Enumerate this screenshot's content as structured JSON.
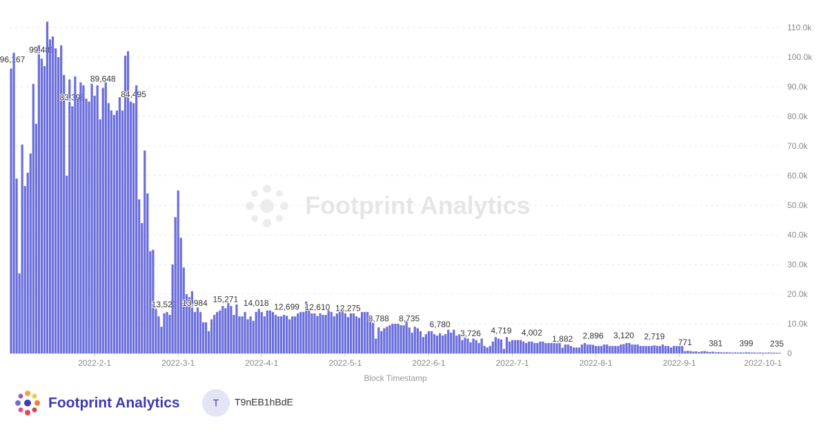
{
  "chart_data": {
    "type": "bar",
    "x_label": "Block Timestamp",
    "color": "#6b6edb",
    "grid": true,
    "ylim": [
      0,
      115000
    ],
    "yticks": [
      0,
      {
        "value": 10000,
        "label": "10.0k"
      },
      {
        "value": 20000,
        "label": "20.0k"
      },
      {
        "value": 30000,
        "label": "30.0k"
      },
      {
        "value": 40000,
        "label": "40.0k"
      },
      {
        "value": 50000,
        "label": "50.0k"
      },
      {
        "value": 60000,
        "label": "60.0k"
      },
      {
        "value": 70000,
        "label": "70.0k"
      },
      {
        "value": 80000,
        "label": "80.0k"
      },
      {
        "value": 90000,
        "label": "90.0k"
      },
      {
        "value": 100000,
        "label": "100.0k"
      },
      {
        "value": 110000,
        "label": "110.0k"
      }
    ],
    "categories": [
      null,
      null,
      null,
      null,
      null,
      null,
      null,
      null,
      null,
      null,
      null,
      null,
      null,
      null,
      null,
      null,
      null,
      null,
      null,
      null,
      null,
      null,
      null,
      null,
      null,
      null,
      null,
      null,
      null,
      null,
      "2022-2-1",
      null,
      null,
      null,
      null,
      null,
      null,
      null,
      null,
      null,
      null,
      null,
      null,
      null,
      null,
      null,
      null,
      null,
      null,
      null,
      null,
      null,
      null,
      null,
      null,
      null,
      null,
      null,
      null,
      null,
      "2022-3-1",
      null,
      null,
      null,
      null,
      null,
      null,
      null,
      null,
      null,
      null,
      null,
      null,
      null,
      null,
      null,
      null,
      null,
      null,
      null,
      null,
      null,
      null,
      null,
      null,
      null,
      null,
      null,
      null,
      null,
      "2022-4-1",
      null,
      null,
      null,
      null,
      null,
      null,
      null,
      null,
      null,
      null,
      null,
      null,
      null,
      null,
      null,
      null,
      null,
      null,
      null,
      null,
      null,
      null,
      null,
      null,
      null,
      null,
      null,
      null,
      null,
      "2022-5-1",
      null,
      null,
      null,
      null,
      null,
      null,
      null,
      null,
      null,
      null,
      null,
      null,
      null,
      null,
      null,
      null,
      null,
      null,
      null,
      null,
      null,
      null,
      null,
      null,
      null,
      null,
      null,
      null,
      null,
      "2022-6-1",
      null,
      null,
      null,
      null,
      null,
      null,
      null,
      null,
      null,
      null,
      null,
      null,
      null,
      null,
      null,
      null,
      null,
      null,
      null,
      null,
      null,
      null,
      null,
      null,
      null,
      null,
      null,
      null,
      null,
      "2022-7-1",
      null,
      null,
      null,
      null,
      null,
      null,
      null,
      null,
      null,
      null,
      null,
      null,
      null,
      null,
      null,
      null,
      null,
      null,
      null,
      null,
      null,
      null,
      null,
      null,
      null,
      null,
      null,
      null,
      null,
      "2022-8-1",
      null,
      null,
      null,
      null,
      null,
      null,
      null,
      null,
      null,
      null,
      null,
      null,
      null,
      null,
      null,
      null,
      null,
      null,
      null,
      null,
      null,
      null,
      null,
      null,
      null,
      null,
      null,
      null,
      null,
      "2022-9-1",
      null,
      null,
      null,
      null,
      null,
      null,
      null,
      null,
      null,
      null,
      null,
      null,
      null,
      null,
      null,
      null,
      null,
      null,
      null,
      null,
      null,
      null,
      null,
      null,
      null,
      null,
      null,
      null,
      null,
      "2022-10-1",
      null,
      null,
      null,
      null,
      null,
      null
    ],
    "values": [
      96167,
      101500,
      59000,
      27000,
      70500,
      56500,
      61000,
      67500,
      91000,
      77500,
      104000,
      99486,
      97000,
      112000,
      106000,
      107000,
      103000,
      100000,
      104000,
      94000,
      60000,
      92500,
      83398,
      93500,
      86000,
      91500,
      90500,
      86000,
      85000,
      91000,
      87000,
      90500,
      79000,
      89648,
      91500,
      84500,
      82000,
      80500,
      82000,
      86500,
      82000,
      100500,
      102000,
      85000,
      84495,
      90500,
      52000,
      44000,
      68500,
      54000,
      34500,
      35000,
      15000,
      12500,
      9000,
      13523,
      14000,
      13000,
      30000,
      46000,
      55000,
      39000,
      29000,
      20000,
      19000,
      21000,
      13984,
      15500,
      14000,
      10500,
      10500,
      7500,
      11500,
      13000,
      14000,
      14500,
      16000,
      15271,
      17000,
      16000,
      13000,
      16500,
      12500,
      12500,
      14000,
      11500,
      12500,
      11000,
      14018,
      15000,
      14000,
      12500,
      14500,
      14500,
      14000,
      13000,
      12500,
      12500,
      13000,
      12699,
      11500,
      12500,
      12500,
      13500,
      14000,
      14000,
      17500,
      14500,
      13500,
      13500,
      12610,
      13500,
      13000,
      13000,
      14500,
      14000,
      12500,
      13500,
      14000,
      15000,
      13500,
      12275,
      13500,
      13500,
      12500,
      12000,
      14000,
      14000,
      14000,
      12500,
      10500,
      5000,
      8788,
      7500,
      8500,
      9000,
      9500,
      10000,
      10000,
      10000,
      9500,
      9500,
      11000,
      8735,
      7000,
      9000,
      8500,
      7500,
      5500,
      6500,
      7500,
      7500,
      6500,
      6000,
      6780,
      6000,
      6500,
      8000,
      7000,
      8000,
      6000,
      6500,
      4500,
      5500,
      5000,
      3726,
      5000,
      4500,
      3500,
      5000,
      2500,
      2000,
      2500,
      4000,
      5500,
      5000,
      4719,
      1500,
      5500,
      4000,
      4500,
      4500,
      4500,
      4500,
      4000,
      3500,
      4000,
      4002,
      3500,
      3500,
      4000,
      4000,
      3500,
      3500,
      3500,
      3500,
      3500,
      3500,
      1882,
      3000,
      3000,
      2500,
      2000,
      2000,
      2000,
      3000,
      3500,
      3000,
      3000,
      2896,
      2500,
      2500,
      2500,
      3000,
      3000,
      2500,
      2500,
      2500,
      2500,
      3000,
      3120,
      3500,
      3500,
      3000,
      3000,
      3000,
      2500,
      2500,
      2500,
      2500,
      2500,
      2719,
      2500,
      2500,
      3000,
      2500,
      2500,
      2000,
      2500,
      2500,
      2500,
      2500,
      771,
      900,
      800,
      600,
      700,
      500,
      700,
      800,
      600,
      500,
      600,
      381,
      450,
      400,
      350,
      400,
      350,
      300,
      350,
      300,
      350,
      300,
      399,
      350,
      300,
      300,
      250,
      300,
      250,
      250,
      300,
      250,
      250,
      235,
      200
    ],
    "value_labels": [
      "96,167",
      null,
      null,
      null,
      null,
      null,
      null,
      null,
      null,
      null,
      null,
      "99,486",
      null,
      null,
      null,
      null,
      null,
      null,
      null,
      null,
      null,
      null,
      "83,398",
      null,
      null,
      null,
      null,
      null,
      null,
      null,
      null,
      null,
      null,
      "89,648",
      null,
      null,
      null,
      null,
      null,
      null,
      null,
      null,
      null,
      null,
      "84,495",
      null,
      null,
      null,
      null,
      null,
      null,
      null,
      null,
      null,
      null,
      "13,523",
      null,
      null,
      null,
      null,
      null,
      null,
      null,
      null,
      null,
      null,
      "13,984",
      null,
      null,
      null,
      null,
      null,
      null,
      null,
      null,
      null,
      null,
      "15,271",
      null,
      null,
      null,
      null,
      null,
      null,
      null,
      null,
      null,
      null,
      "14,018",
      null,
      null,
      null,
      null,
      null,
      null,
      null,
      null,
      null,
      null,
      "12,699",
      null,
      null,
      null,
      null,
      null,
      null,
      null,
      null,
      null,
      null,
      "12,610",
      null,
      null,
      null,
      null,
      null,
      null,
      null,
      null,
      null,
      null,
      "12,275",
      null,
      null,
      null,
      null,
      null,
      null,
      null,
      null,
      null,
      null,
      "8,788",
      null,
      null,
      null,
      null,
      null,
      null,
      null,
      null,
      null,
      null,
      "8,735",
      null,
      null,
      null,
      null,
      null,
      null,
      null,
      null,
      null,
      null,
      "6,780",
      null,
      null,
      null,
      null,
      null,
      null,
      null,
      null,
      null,
      null,
      "3,726",
      null,
      null,
      null,
      null,
      null,
      null,
      null,
      null,
      null,
      null,
      "4,719",
      null,
      null,
      null,
      null,
      null,
      null,
      null,
      null,
      null,
      null,
      "4,002",
      null,
      null,
      null,
      null,
      null,
      null,
      null,
      null,
      null,
      null,
      "1,882",
      null,
      null,
      null,
      null,
      null,
      null,
      null,
      null,
      null,
      null,
      "2,896",
      null,
      null,
      null,
      null,
      null,
      null,
      null,
      null,
      null,
      null,
      "3,120",
      null,
      null,
      null,
      null,
      null,
      null,
      null,
      null,
      null,
      null,
      "2,719",
      null,
      null,
      null,
      null,
      null,
      null,
      null,
      null,
      null,
      null,
      "771",
      null,
      null,
      null,
      null,
      null,
      null,
      null,
      null,
      null,
      null,
      "381",
      null,
      null,
      null,
      null,
      null,
      null,
      null,
      null,
      null,
      null,
      "399",
      null,
      null,
      null,
      null,
      null,
      null,
      null,
      null,
      null,
      null,
      "235",
      null
    ]
  },
  "watermark": "Footprint Analytics",
  "footer": {
    "brand": "Footprint Analytics",
    "avatar": "T",
    "user": "T9nEB1hBdE"
  }
}
